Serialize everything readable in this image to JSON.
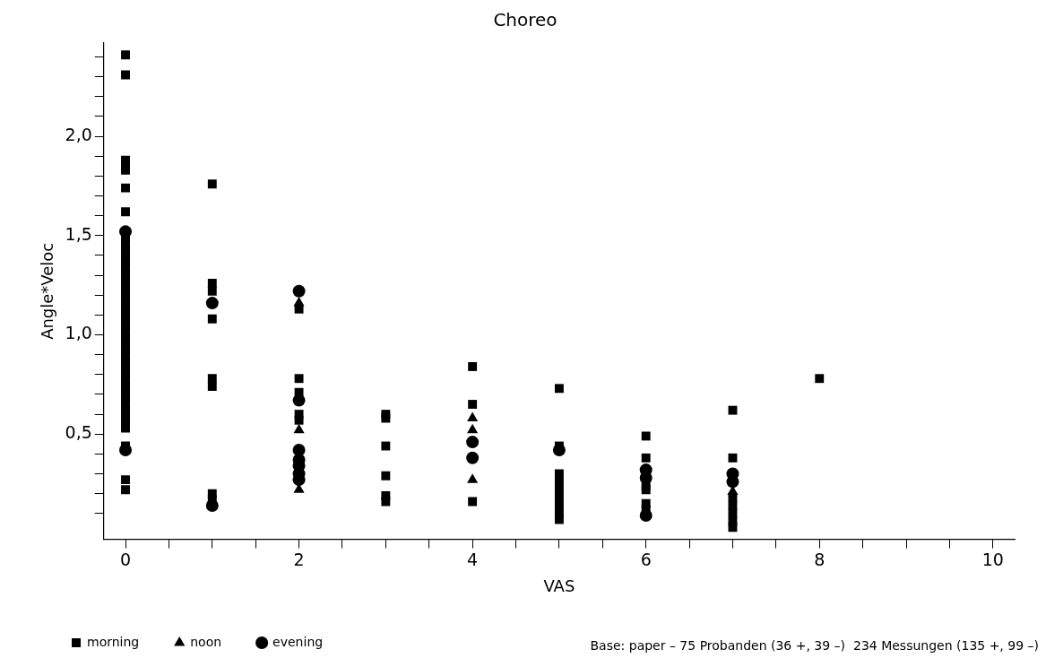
{
  "chart_data": {
    "type": "scatter",
    "title": "Choreo",
    "xlabel": "VAS",
    "ylabel": "Angle*Veloc",
    "xlim": [
      -0.25,
      10.25
    ],
    "xticks": [
      0,
      {
        "value": 0.5,
        "label": null
      },
      {
        "value": 1,
        "label": null
      },
      {
        "value": 1.5,
        "label": null
      },
      2,
      {
        "value": 2.5,
        "label": null
      },
      {
        "value": 3,
        "label": null
      },
      {
        "value": 3.5,
        "label": null
      },
      4,
      {
        "value": 4.5,
        "label": null
      },
      {
        "value": 5,
        "label": null
      },
      {
        "value": 5.5,
        "label": null
      },
      6,
      {
        "value": 6.5,
        "label": null
      },
      {
        "value": 7,
        "label": null
      },
      {
        "value": 7.5,
        "label": null
      },
      8,
      {
        "value": 8.5,
        "label": null
      },
      {
        "value": 9,
        "label": null
      },
      {
        "value": 9.5,
        "label": null
      },
      10
    ],
    "ylim": [
      -0.03,
      2.47
    ],
    "yticks": [
      {
        "value": 0.1,
        "label": null
      },
      {
        "value": 0.2,
        "label": null
      },
      {
        "value": 0.3,
        "label": null
      },
      {
        "value": 0.4,
        "label": null
      },
      {
        "value": 0.5,
        "label": "0,5"
      },
      {
        "value": 0.6,
        "label": null
      },
      {
        "value": 0.7,
        "label": null
      },
      {
        "value": 0.8,
        "label": null
      },
      {
        "value": 0.9,
        "label": null
      },
      {
        "value": 1.0,
        "label": "1,0"
      },
      {
        "value": 1.1,
        "label": null
      },
      {
        "value": 1.2,
        "label": null
      },
      {
        "value": 1.3,
        "label": null
      },
      {
        "value": 1.4,
        "label": null
      },
      {
        "value": 1.5,
        "label": "1,5"
      },
      {
        "value": 1.6,
        "label": null
      },
      {
        "value": 1.7,
        "label": null
      },
      {
        "value": 1.8,
        "label": null
      },
      {
        "value": 1.9,
        "label": null
      },
      {
        "value": 2.0,
        "label": "2,0"
      },
      {
        "value": 2.1,
        "label": null
      },
      {
        "value": 2.2,
        "label": null
      },
      {
        "value": 2.3,
        "label": null
      },
      {
        "value": 2.4,
        "label": null
      }
    ],
    "grid": false,
    "legend": "bottom left",
    "annotations": [
      "Base: paper – 75 Probanden (36 +, 39 –)  234 Messungen (135 +, 99 –)"
    ],
    "series": [
      {
        "name": "morning",
        "color": "#000000",
        "marker": "square",
        "x": [
          0,
          0,
          0,
          0,
          0,
          0,
          0,
          0,
          0,
          0,
          0,
          0,
          0,
          0,
          0,
          0,
          0,
          0,
          0,
          0,
          0,
          0,
          0,
          0,
          0,
          0,
          0,
          0,
          0,
          0,
          0,
          0,
          0,
          0,
          0,
          0,
          0,
          0,
          0,
          0,
          0,
          0,
          0,
          1,
          1,
          1,
          1,
          1,
          1,
          1,
          1,
          2,
          2,
          2,
          2,
          2,
          3,
          3,
          3,
          3,
          3,
          3,
          4,
          4,
          4,
          5,
          5,
          5,
          5,
          5,
          5,
          5,
          5,
          5,
          6,
          6,
          6,
          6,
          6,
          6,
          7,
          7,
          7,
          7,
          7,
          7,
          7,
          8
        ],
        "values": [
          2.41,
          2.31,
          1.88,
          1.85,
          1.83,
          1.74,
          1.62,
          1.49,
          1.46,
          1.43,
          1.4,
          1.37,
          1.34,
          1.31,
          1.28,
          1.25,
          1.22,
          1.19,
          1.16,
          1.13,
          1.1,
          1.07,
          1.04,
          1.01,
          0.98,
          0.95,
          0.92,
          0.89,
          0.86,
          0.83,
          0.8,
          0.77,
          0.74,
          0.71,
          0.68,
          0.65,
          0.62,
          0.59,
          0.56,
          0.53,
          0.44,
          0.27,
          0.22,
          1.76,
          1.26,
          1.22,
          1.08,
          0.78,
          0.74,
          0.2,
          0.17,
          1.13,
          0.78,
          0.71,
          0.6,
          0.57,
          0.6,
          0.58,
          0.44,
          0.29,
          0.19,
          0.16,
          0.84,
          0.65,
          0.16,
          0.73,
          0.44,
          0.3,
          0.26,
          0.22,
          0.18,
          0.14,
          0.1,
          0.07,
          0.49,
          0.38,
          0.24,
          0.22,
          0.15,
          0.12,
          0.62,
          0.38,
          0.18,
          0.14,
          0.1,
          0.06,
          0.03,
          0.78
        ]
      },
      {
        "name": "noon",
        "color": "#000000",
        "marker": "triangle",
        "x": [
          2,
          2,
          2,
          4,
          4,
          4,
          7
        ],
        "values": [
          1.16,
          0.52,
          0.22,
          0.58,
          0.52,
          0.27,
          0.21
        ]
      },
      {
        "name": "evening",
        "color": "#000000",
        "marker": "circle",
        "x": [
          0,
          0,
          1,
          1,
          2,
          2,
          2,
          2,
          2,
          2,
          2,
          4,
          4,
          5,
          6,
          6,
          6,
          7,
          7
        ],
        "values": [
          1.52,
          0.42,
          1.16,
          0.14,
          1.22,
          0.67,
          0.42,
          0.37,
          0.34,
          0.3,
          0.27,
          0.46,
          0.38,
          0.42,
          0.32,
          0.28,
          0.09,
          0.3,
          0.26
        ]
      }
    ]
  }
}
